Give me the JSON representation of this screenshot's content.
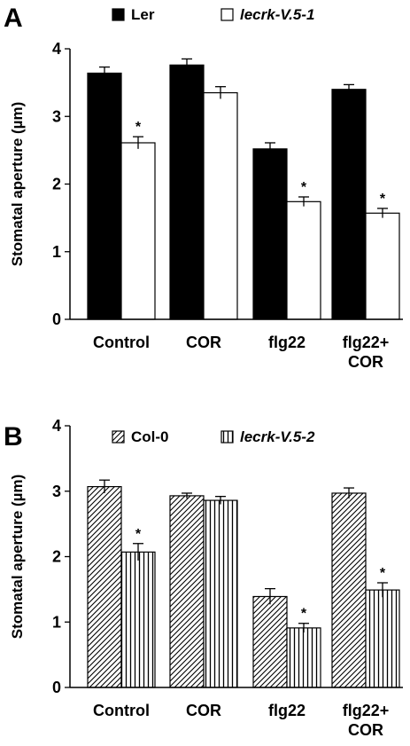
{
  "chart_data": [
    {
      "type": "bar",
      "panel_label": "A",
      "ylabel": "Stomatal aperture (µm)",
      "ylim": [
        0,
        4
      ],
      "yticks": [
        "0",
        "1",
        "2",
        "3",
        "4"
      ],
      "categories": [
        [
          "Control"
        ],
        [
          "COR"
        ],
        [
          "flg22"
        ],
        [
          "flg22+",
          "COR"
        ]
      ],
      "series": [
        {
          "name": "Ler",
          "fill": "solid-black",
          "values": [
            3.64,
            3.76,
            2.52,
            3.4
          ],
          "errors": [
            0.09,
            0.09,
            0.09,
            0.07
          ],
          "significant": [
            false,
            false,
            false,
            false
          ]
        },
        {
          "name": "lecrk-V.5-1",
          "fill": "white",
          "values": [
            2.61,
            3.35,
            1.74,
            1.57
          ],
          "errors": [
            0.09,
            0.09,
            0.07,
            0.07
          ],
          "significant": [
            true,
            false,
            true,
            true
          ]
        }
      ],
      "annotation_symbol": "*",
      "legend": "top"
    },
    {
      "type": "bar",
      "panel_label": "B",
      "ylabel": "Stomatal aperture (µm)",
      "ylim": [
        0,
        4
      ],
      "yticks": [
        "0",
        "1",
        "2",
        "3",
        "4"
      ],
      "categories": [
        [
          "Control"
        ],
        [
          "COR"
        ],
        [
          "flg22"
        ],
        [
          "flg22+",
          "COR"
        ]
      ],
      "series": [
        {
          "name": "Col-0",
          "fill": "diagonal-hatch",
          "values": [
            3.07,
            2.93,
            1.39,
            2.97
          ],
          "errors": [
            0.1,
            0.04,
            0.12,
            0.08
          ],
          "significant": [
            false,
            false,
            false,
            false
          ]
        },
        {
          "name": "lecrk-V.5-2",
          "fill": "vertical-hatch",
          "values": [
            2.07,
            2.86,
            0.91,
            1.49
          ],
          "errors": [
            0.13,
            0.06,
            0.07,
            0.11
          ],
          "significant": [
            true,
            false,
            true,
            true
          ]
        }
      ],
      "annotation_symbol": "*",
      "legend": "top"
    }
  ]
}
